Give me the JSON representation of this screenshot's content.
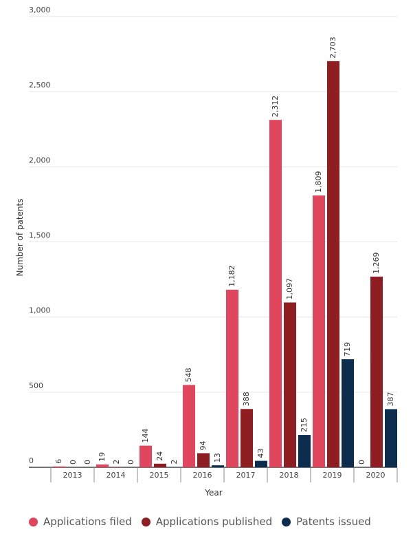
{
  "chart_data": {
    "type": "bar",
    "categories": [
      "2013",
      "2014",
      "2015",
      "2016",
      "2017",
      "2018",
      "2019",
      "2020"
    ],
    "series": [
      {
        "name": "Applications filed",
        "color": "#E0475F",
        "values": [
          6,
          19,
          144,
          548,
          1182,
          2312,
          1809,
          0
        ]
      },
      {
        "name": "Applications published",
        "color": "#8E1E22",
        "values": [
          0,
          2,
          24,
          94,
          388,
          1097,
          2703,
          1269
        ]
      },
      {
        "name": "Patents issued",
        "color": "#0C2D4E",
        "values": [
          0,
          0,
          2,
          13,
          43,
          215,
          719,
          387
        ]
      }
    ],
    "xlabel": "Year",
    "ylabel": "Number of patents",
    "ylim": [
      0,
      3000
    ],
    "yticks": [
      "0",
      "500",
      "1,000",
      "1,500",
      "2,000",
      "2,500",
      "3,000"
    ],
    "grid": true,
    "legend_position": "bottom-left"
  }
}
